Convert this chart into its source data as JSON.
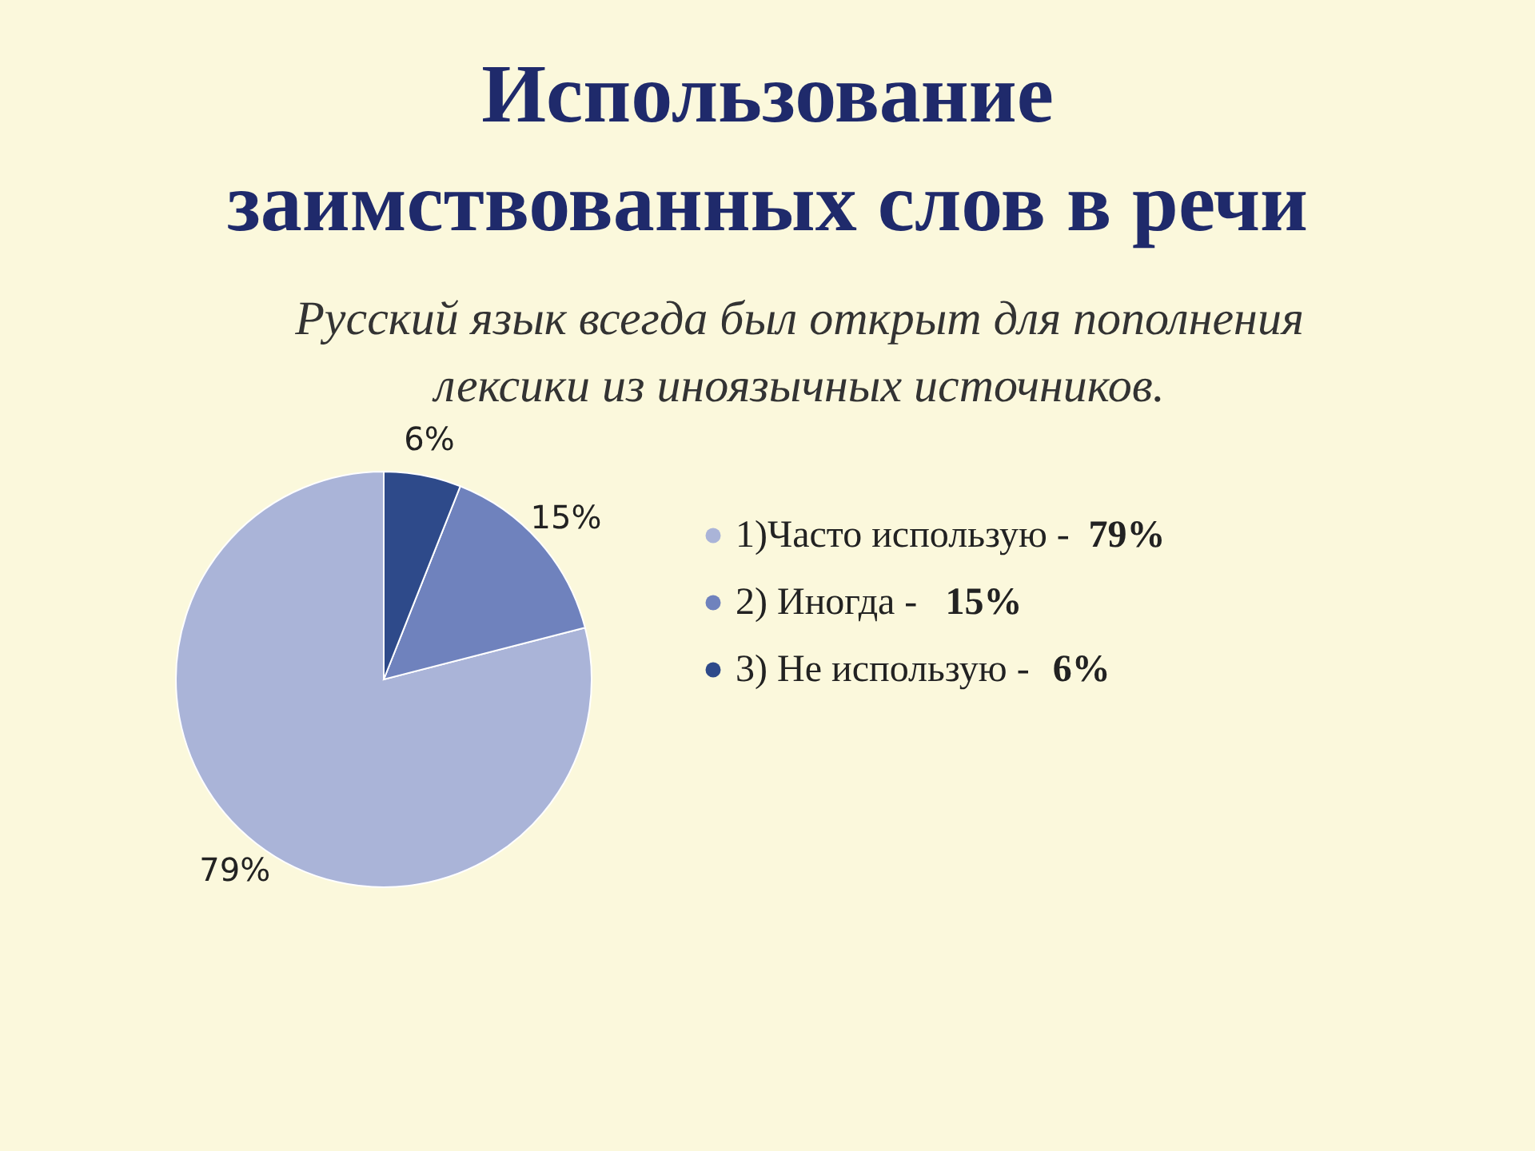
{
  "chart_data": {
    "type": "pie",
    "title": "Использование заимствованных слов в речи",
    "subtitle": "Русский язык всегда был открыт для пополнения лексики из иноязычных источников.",
    "categories": [
      "1)Часто использую -",
      "2) Иногда -",
      "3) Не использую -"
    ],
    "values": [
      79,
      15,
      6
    ],
    "value_labels": [
      "79%",
      "15%",
      "6%"
    ],
    "colors": [
      "#aab4d8",
      "#6f82bd",
      "#2e4a8a"
    ],
    "legend": "right"
  }
}
